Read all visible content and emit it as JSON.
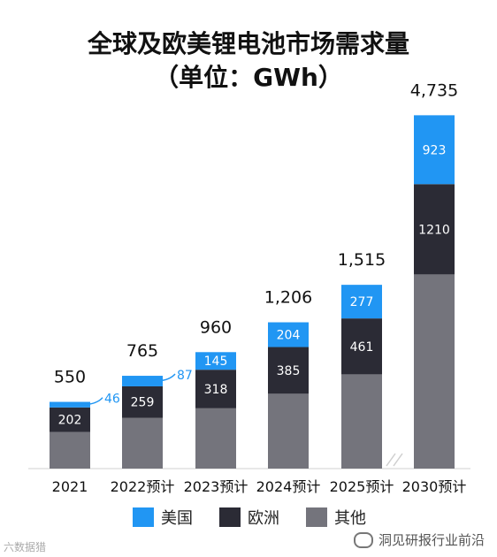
{
  "title_line1": "全球及欧美锂电池市场需求量",
  "title_line2": "（单位：GWh）",
  "colors": {
    "us": "#2196F3",
    "eu": "#2B2B35",
    "other": "#74747C"
  },
  "legend": [
    {
      "key": "us",
      "label": "美国"
    },
    {
      "key": "eu",
      "label": "欧洲"
    },
    {
      "key": "other",
      "label": "其他"
    }
  ],
  "watermark_left": "六数据猎",
  "watermark_right": "洞见研报行业前沿",
  "chart_data": {
    "type": "bar",
    "stacked": true,
    "categories": [
      "2021",
      "2022预计",
      "2023预计",
      "2024预计",
      "2025预计",
      "2030预计"
    ],
    "totals": [
      "550",
      "765",
      "960",
      "1,206",
      "1,515",
      "4,735"
    ],
    "total_values": [
      550,
      765,
      960,
      1206,
      1515,
      4735
    ],
    "axis_break": true,
    "series": [
      {
        "key": "other",
        "name": "其他",
        "values": [
          302,
          419,
          497,
          617,
          777,
          2602
        ]
      },
      {
        "key": "eu",
        "name": "欧洲",
        "values": [
          202,
          259,
          318,
          385,
          461,
          1210
        ]
      },
      {
        "key": "us",
        "name": "美国",
        "values": [
          46,
          87,
          145,
          204,
          277,
          923
        ]
      }
    ],
    "labels": {
      "eu": [
        "202",
        "259",
        "318",
        "385",
        "461",
        "1210"
      ],
      "us": [
        "46",
        "87",
        "145",
        "204",
        "277",
        "923"
      ]
    }
  }
}
